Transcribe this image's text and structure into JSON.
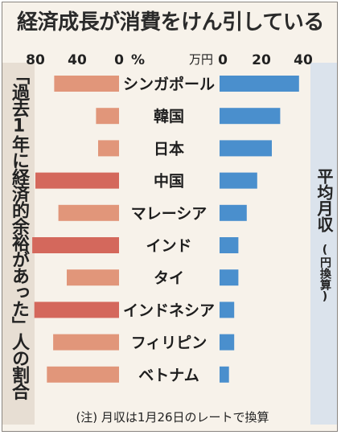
{
  "title": "経済成長が消費をけん引している",
  "note": "(注) 月収は1月26日のレートで換算",
  "left_label": "「過去1年に経済的余裕があった」人の割合",
  "right_label": "平均月収",
  "right_sublabel": "(円換算)",
  "left_axis": {
    "ticks": [
      "80",
      "40",
      "0"
    ],
    "unit": "%"
  },
  "right_axis": {
    "ticks": [
      "0",
      "20",
      "40"
    ],
    "unit": "万円"
  },
  "colors": {
    "left_normal": "#e1967a",
    "left_high": "#d4685c",
    "right": "#4a8fcd"
  },
  "chart_data": [
    {
      "type": "bar",
      "orientation": "horizontal-reversed",
      "categories": [
        "シンガポール",
        "韓国",
        "日本",
        "中国",
        "マレーシア",
        "インド",
        "タイ",
        "インドネシア",
        "フィリピン",
        "ベトナム"
      ],
      "values": [
        62,
        22,
        20,
        80,
        58,
        83,
        50,
        81,
        63,
        69
      ],
      "xlabel": "「過去1年に経済的余裕があった」人の割合",
      "unit": "%",
      "xlim": [
        0,
        90
      ]
    },
    {
      "type": "bar",
      "orientation": "horizontal",
      "categories": [
        "シンガポール",
        "韓国",
        "日本",
        "中国",
        "マレーシア",
        "インド",
        "タイ",
        "インドネシア",
        "フィリピン",
        "ベトナム"
      ],
      "values": [
        38,
        29,
        25,
        18,
        13,
        9,
        9,
        7,
        7,
        4.5
      ],
      "xlabel": "平均月収(円換算)",
      "unit": "万円",
      "xlim": [
        0,
        40
      ]
    }
  ]
}
